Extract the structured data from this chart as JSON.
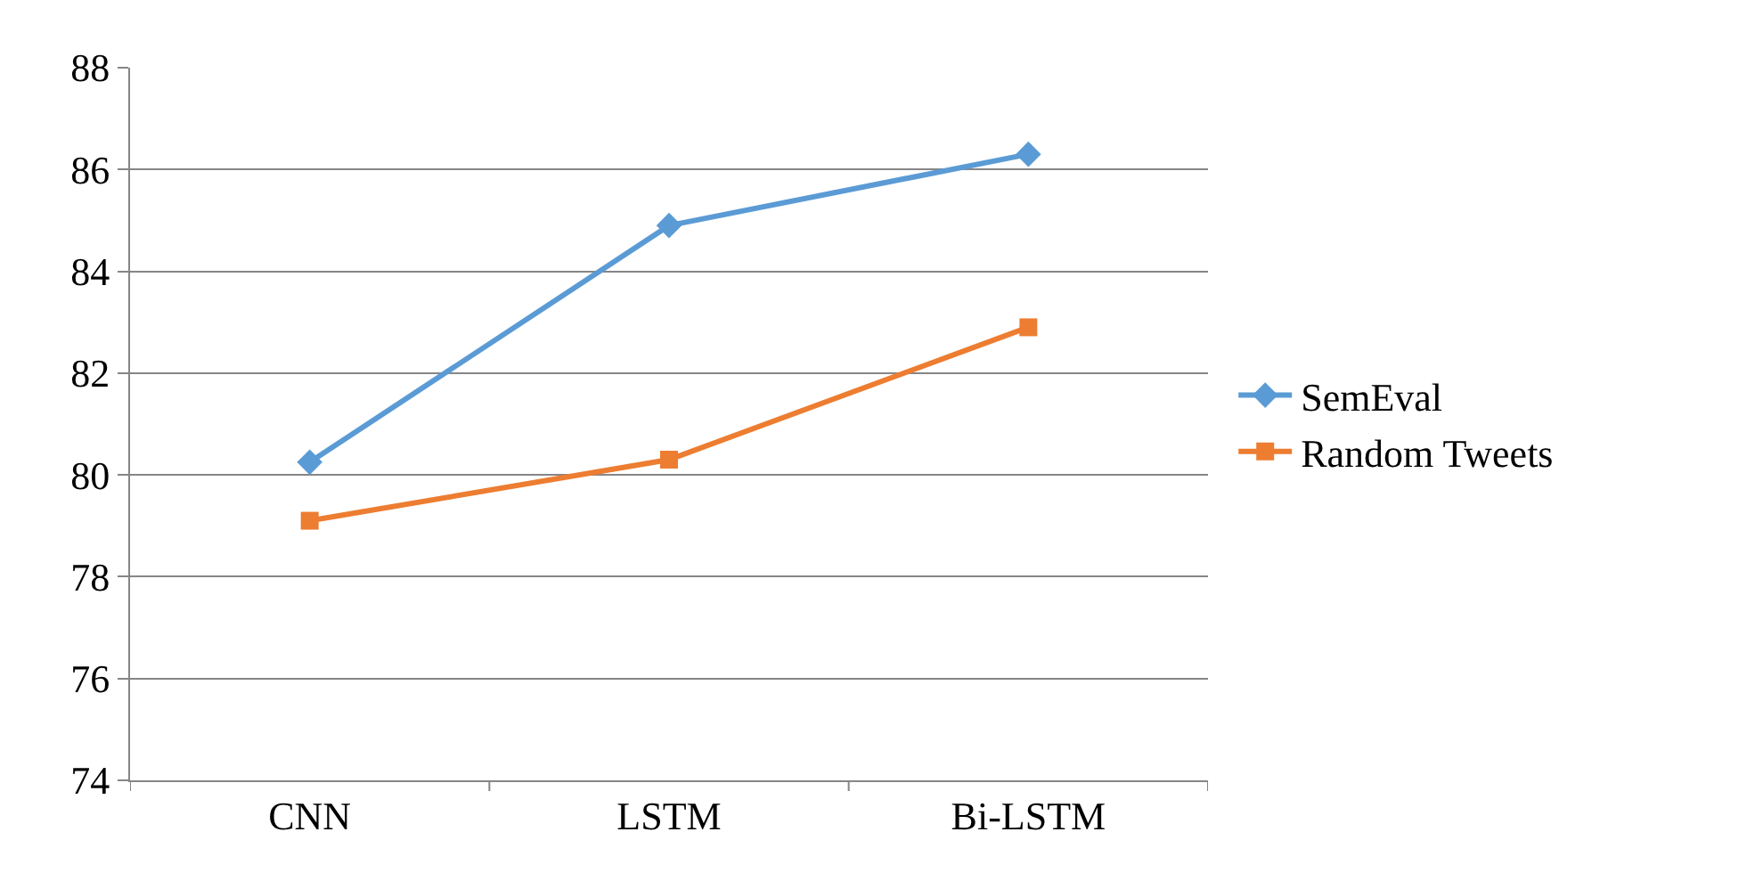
{
  "chart_data": {
    "type": "line",
    "categories": [
      "CNN",
      "LSTM",
      "Bi-LSTM"
    ],
    "series": [
      {
        "name": "SemEval",
        "color": "#5b9bd5",
        "marker": "diamond",
        "values": [
          80.25,
          84.9,
          86.3
        ]
      },
      {
        "name": "Random Tweets",
        "color": "#ed7d31",
        "marker": "square",
        "values": [
          79.1,
          80.3,
          82.9
        ]
      }
    ],
    "ylim": [
      74,
      88
    ],
    "yticks": [
      74,
      76,
      78,
      80,
      82,
      84,
      86,
      88
    ],
    "grid": "y",
    "legend": "right",
    "line_style": "solid"
  }
}
